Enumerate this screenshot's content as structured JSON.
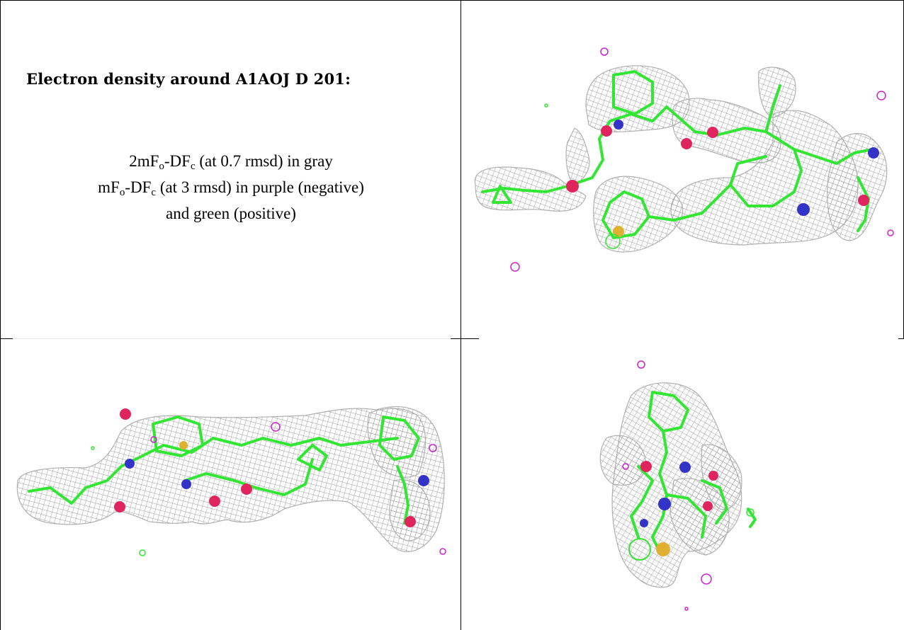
{
  "title": "Electron density around A1AOJ D 201:",
  "legend": {
    "line1_prefix": "2mF",
    "line1_sub_o": "o",
    "line1_mid": "-DF",
    "line1_sub_c": "c",
    "line1_suffix": " (at 0.7 rmsd) in gray",
    "line2_prefix": "mF",
    "line2_sub_o": "o",
    "line2_mid": "-DF",
    "line2_sub_c": "c",
    "line2_suffix": " (at 3 rmsd) in purple (negative)",
    "line3": "and green (positive)"
  },
  "colors": {
    "mesh": "#a8a8a8",
    "carbon": "#33e633",
    "nitrogen": "#3333c8",
    "oxygen": "#e0245e",
    "sulfur": "#e0b030",
    "negative": "#cc22cc"
  },
  "panels": [
    {
      "name": "view-1",
      "view": "front"
    },
    {
      "name": "view-2",
      "view": "side"
    },
    {
      "name": "view-3",
      "view": "end-on"
    }
  ]
}
